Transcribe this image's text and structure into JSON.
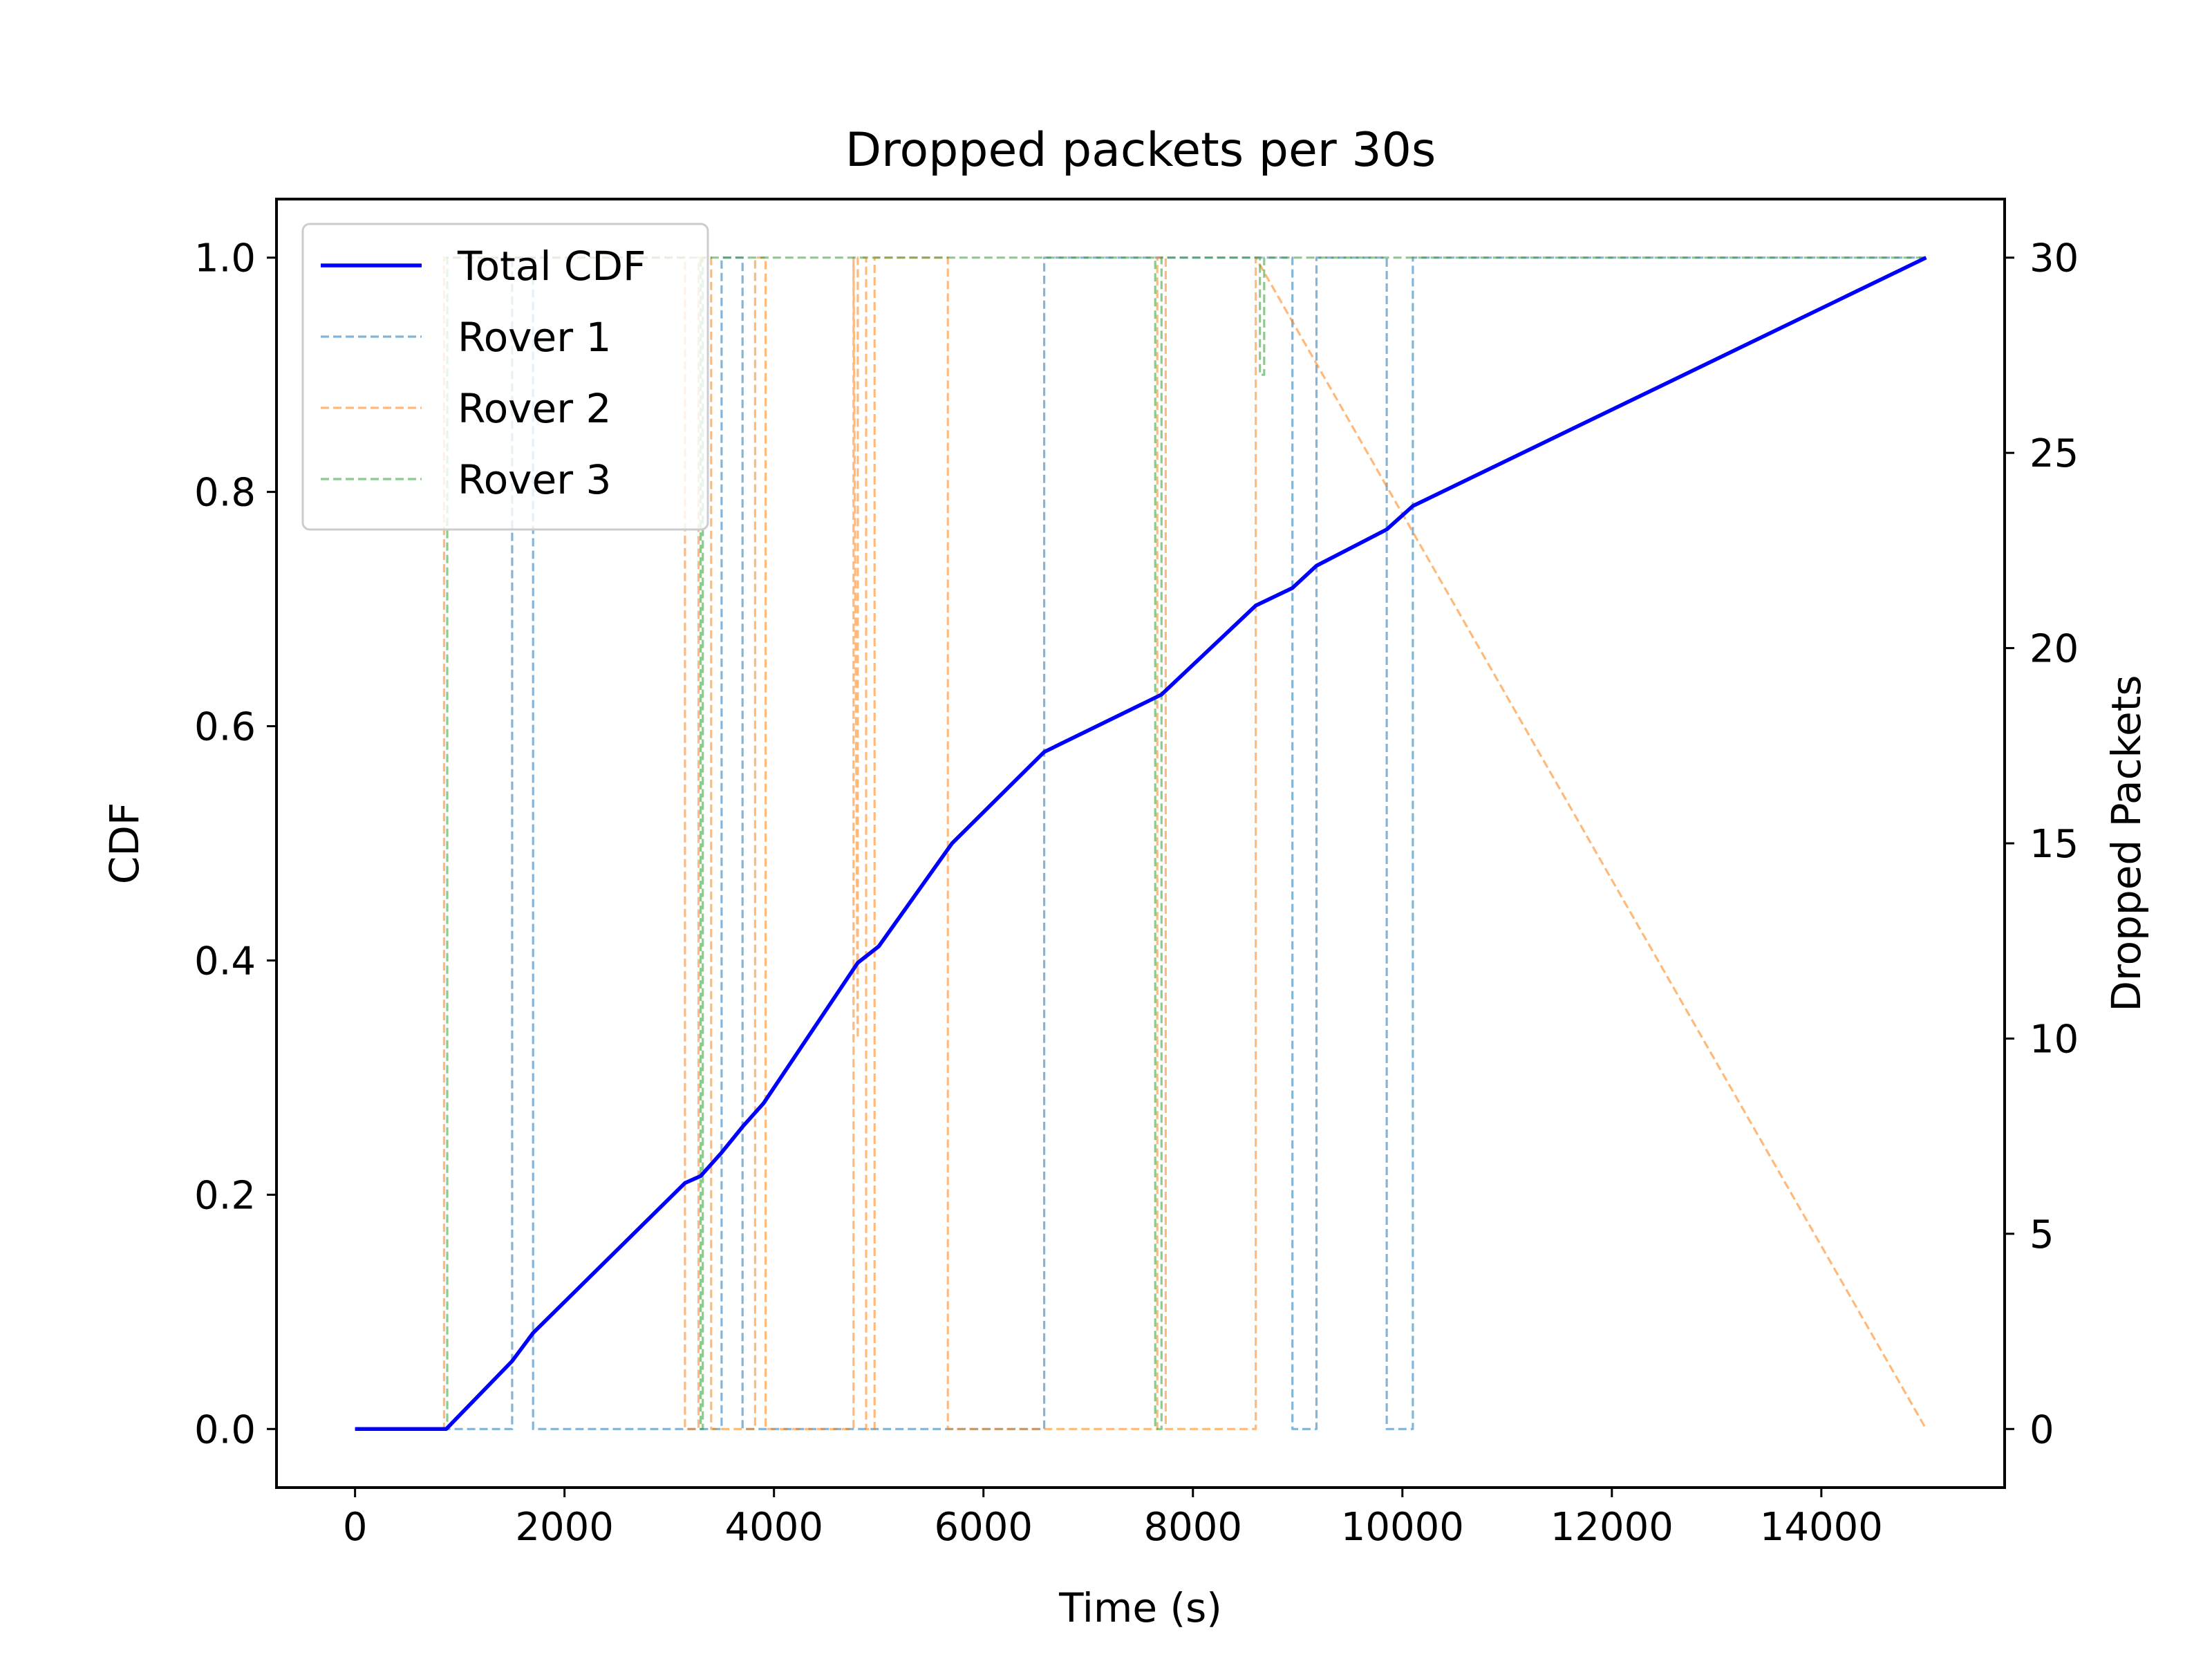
{
  "chart_data": {
    "type": "line",
    "title": "Dropped packets per 30s",
    "xlabel": "Time (s)",
    "ylabel": "CDF",
    "y2label": "Dropped Packets",
    "xlim": [
      -750,
      15750
    ],
    "ylim": [
      -0.05,
      1.05
    ],
    "y2lim": [
      -1.5,
      31.5
    ],
    "xticks": [
      0,
      2000,
      4000,
      6000,
      8000,
      10000,
      12000,
      14000
    ],
    "xtick_labels": [
      "0",
      "2000",
      "4000",
      "6000",
      "8000",
      "10000",
      "12000",
      "14000"
    ],
    "yticks": [
      0.0,
      0.2,
      0.4,
      0.6,
      0.8,
      1.0
    ],
    "ytick_labels": [
      "0.0",
      "0.2",
      "0.4",
      "0.6",
      "0.8",
      "1.0"
    ],
    "y2ticks": [
      0,
      5,
      10,
      15,
      20,
      25,
      30
    ],
    "y2tick_labels": [
      "0",
      "5",
      "10",
      "15",
      "20",
      "25",
      "30"
    ],
    "grid": false,
    "legend_position": "top-left",
    "series": [
      {
        "name": "Total CDF",
        "axis": "left",
        "color": "#0000ff",
        "style": "solid",
        "x": [
          0,
          870,
          1500,
          1700,
          3150,
          3300,
          3500,
          3700,
          3900,
          4800,
          5000,
          5700,
          6580,
          7700,
          8600,
          8950,
          9180,
          9850,
          10100,
          15000
        ],
        "y": [
          0.0,
          0.0,
          0.058,
          0.082,
          0.21,
          0.216,
          0.236,
          0.258,
          0.278,
          0.398,
          0.412,
          0.5,
          0.578,
          0.627,
          0.703,
          0.718,
          0.737,
          0.768,
          0.788,
          1.0
        ]
      },
      {
        "name": "Rover 1",
        "axis": "right",
        "color": "#1f77b4",
        "style": "dashed",
        "x": [
          0,
          1500,
          1500,
          1700,
          1700,
          3500,
          3500,
          3700,
          3700,
          6580,
          6580,
          8950,
          8950,
          9180,
          9180,
          9850,
          9850,
          10100,
          10100,
          15000
        ],
        "y": [
          0,
          0,
          30,
          30,
          0,
          0,
          30,
          30,
          0,
          0,
          30,
          30,
          0,
          0,
          30,
          30,
          0,
          0,
          30,
          30
        ]
      },
      {
        "name": "Rover 2",
        "axis": "right",
        "color": "#ff7f0e",
        "style": "dashed",
        "x": [
          0,
          850,
          850,
          3150,
          3150,
          3280,
          3280,
          3400,
          3400,
          3820,
          3820,
          3920,
          3920,
          4760,
          4760,
          4800,
          4800,
          4880,
          4880,
          4960,
          4960,
          5660,
          5660,
          7660,
          7660,
          7740,
          7740,
          8600,
          8600,
          15000
        ],
        "y": [
          0,
          0,
          30,
          30,
          0,
          0,
          30,
          30,
          0,
          0,
          30,
          30,
          0,
          0,
          30,
          10,
          30,
          30,
          0,
          0,
          30,
          30,
          0,
          0,
          30,
          30,
          0,
          0,
          30,
          0
        ]
      },
      {
        "name": "Rover 3",
        "axis": "right",
        "color": "#2ca02c",
        "style": "dashed",
        "x": [
          0,
          880,
          880,
          3300,
          3300,
          3320,
          3320,
          7640,
          7640,
          7700,
          7700,
          8640,
          8640,
          8680,
          8680,
          15000
        ],
        "y": [
          0,
          0,
          30,
          30,
          0,
          0,
          30,
          30,
          0,
          0,
          30,
          30,
          27,
          27,
          30,
          30
        ]
      }
    ]
  }
}
